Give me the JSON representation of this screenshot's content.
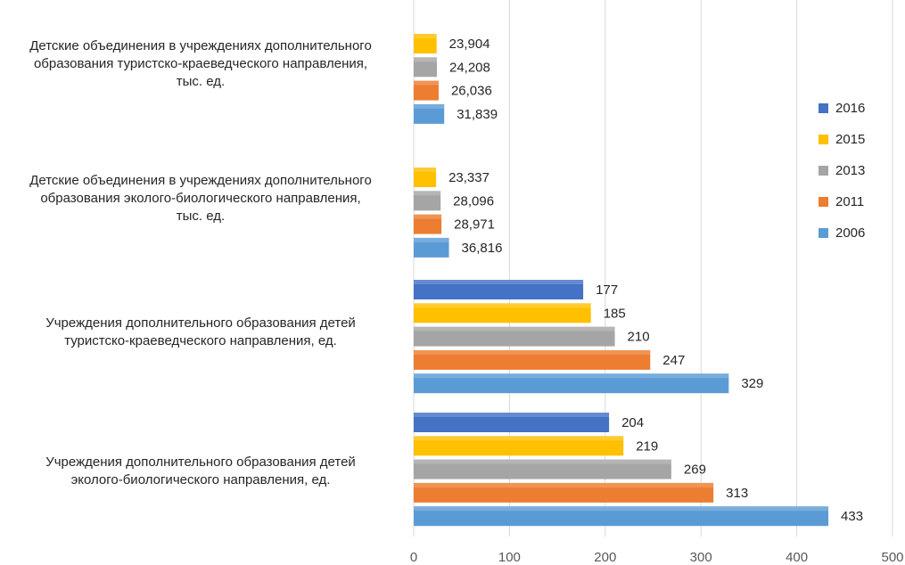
{
  "chart_data": {
    "type": "bar",
    "orientation": "horizontal",
    "title": "",
    "xlabel": "",
    "ylabel": "",
    "xlim": [
      0,
      500
    ],
    "x_ticks": [
      "0",
      "100",
      "200",
      "300",
      "400",
      "500"
    ],
    "grid": true,
    "legend_position": "right",
    "categories": [
      "Детские объединения в учреждениях дополнительного образования туристско-краеведческого направления, тыс. ед.",
      "Детские объединения в учреждениях дополнительного образования эколого-биологического направления, тыс. ед.",
      "Учреждения дополнительного образования детей туристско-краеведческого направления, ед.",
      "Учреждения дополнительного образования детей эколого-биологического направления, ед."
    ],
    "category_lines": [
      [
        "Детские объединения в учреждениях дополнительного",
        "образования туристско-краеведческого направления,",
        "тыс. ед."
      ],
      [
        "Детские объединения в учреждениях дополнительного",
        "образования эколого-биологического направления,",
        "тыс. ед."
      ],
      [
        "Учреждения дополнительного образования детей",
        "туристско-краеведческого направления, ед."
      ],
      [
        "Учреждения дополнительного образования детей",
        "эколого-биологического направления, ед."
      ]
    ],
    "series": [
      {
        "name": "2016",
        "color": "#4472C4",
        "values": [
          null,
          null,
          177,
          204
        ],
        "labels": [
          "",
          "",
          "177",
          "204"
        ]
      },
      {
        "name": "2015",
        "color": "#FFC000",
        "values": [
          23.904,
          23.337,
          185,
          219
        ],
        "labels": [
          "23,904",
          "23,337",
          "185",
          "219"
        ]
      },
      {
        "name": "2013",
        "color": "#A5A5A5",
        "values": [
          24.208,
          28.096,
          210,
          269
        ],
        "labels": [
          "24,208",
          "28,096",
          "210",
          "269"
        ]
      },
      {
        "name": "2011",
        "color": "#ED7D31",
        "values": [
          26.036,
          28.971,
          247,
          313
        ],
        "labels": [
          "26,036",
          "28,971",
          "247",
          "313"
        ]
      },
      {
        "name": "2006",
        "color": "#5B9BD5",
        "values": [
          31.839,
          36.816,
          329,
          433
        ],
        "labels": [
          "31,839",
          "36,816",
          "329",
          "433"
        ]
      }
    ]
  }
}
